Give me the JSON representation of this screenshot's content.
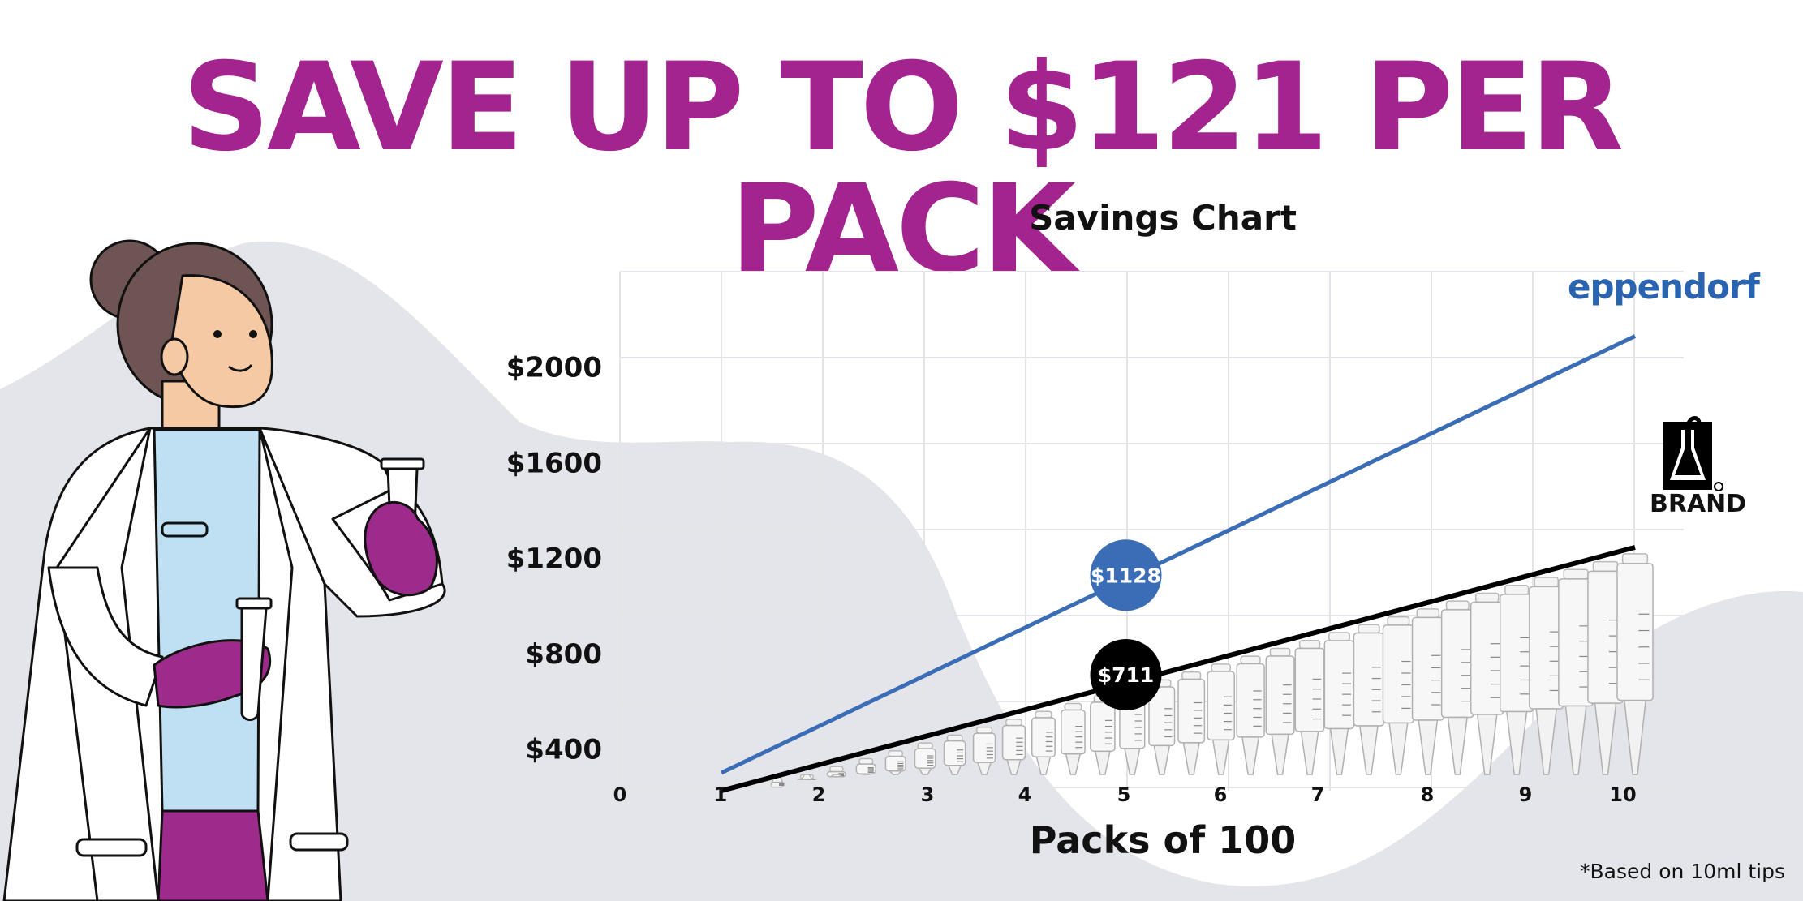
{
  "headline": "SAVE UP TO $121 PER PACK",
  "footnote": "*Based on 10ml tips",
  "brands": {
    "eppendorf": "eppendorf",
    "brand": "BRAND"
  },
  "colors": {
    "headline": "#a3238f",
    "eppendorf_line": "#3a6db5",
    "brand_line": "#000000",
    "background_blob": "#e4e5ea",
    "glove": "#9c2b8c",
    "scrubs": "#bfe0f2"
  },
  "chart_data": {
    "type": "line",
    "title": "Savings Chart",
    "xlabel": "Packs of 100",
    "ylabel": "",
    "x_ticks": [
      "0",
      "1",
      "2",
      "3",
      "4",
      "5",
      "6",
      "7",
      "8",
      "9",
      "10"
    ],
    "y_ticks": [
      "$400",
      "$800",
      "$1200",
      "$1600",
      "$2000"
    ],
    "y_tick_values": [
      400,
      800,
      1200,
      1600,
      2000
    ],
    "xlim": [
      0,
      10
    ],
    "ylim": [
      140,
      2400
    ],
    "grid": true,
    "series": [
      {
        "name": "eppendorf",
        "color": "#3a6db5",
        "x": [
          1,
          10
        ],
        "y": [
          300,
          2130
        ]
      },
      {
        "name": "BRAND",
        "color": "#000000",
        "x": [
          1,
          10
        ],
        "y": [
          225,
          1245
        ]
      }
    ],
    "annotations": [
      {
        "x": 5,
        "y": 1128,
        "text": "$1128",
        "color": "#3a6db5"
      },
      {
        "x": 5,
        "y": 711,
        "text": "$711",
        "color": "#000000"
      }
    ]
  }
}
